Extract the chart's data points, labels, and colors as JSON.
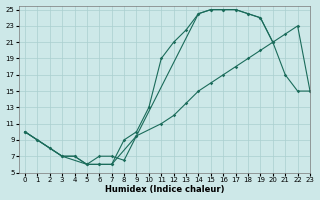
{
  "xlabel": "Humidex (Indice chaleur)",
  "xlim": [
    -0.5,
    23
  ],
  "ylim": [
    5,
    25.5
  ],
  "xticks": [
    0,
    1,
    2,
    3,
    4,
    5,
    6,
    7,
    8,
    9,
    10,
    11,
    12,
    13,
    14,
    15,
    16,
    17,
    18,
    19,
    20,
    21,
    22,
    23
  ],
  "yticks": [
    5,
    7,
    9,
    11,
    13,
    15,
    17,
    19,
    21,
    23,
    25
  ],
  "bg_color": "#cde8e8",
  "grid_color": "#aacfcf",
  "line_color": "#1a6b5a",
  "line1_x": [
    0,
    1,
    2,
    3,
    4,
    5,
    6,
    7,
    8,
    9,
    10,
    11,
    12,
    13,
    14,
    15,
    16,
    17,
    18,
    19,
    20
  ],
  "line1_y": [
    10,
    9,
    8,
    7,
    7,
    6,
    6,
    6,
    9,
    10,
    13,
    19,
    21,
    22.5,
    24.5,
    25,
    25,
    25,
    24.5,
    24,
    21
  ],
  "line2_x": [
    0,
    1,
    2,
    3,
    4,
    5,
    6,
    7,
    9,
    11,
    12,
    13,
    14,
    15,
    16,
    17,
    18,
    19,
    20,
    21,
    22,
    23
  ],
  "line2_y": [
    10,
    9,
    8,
    7,
    7,
    6,
    6,
    6,
    9.5,
    11,
    12,
    13.5,
    15,
    16,
    17,
    18,
    19,
    20,
    21,
    22,
    23,
    15
  ],
  "line3_x": [
    0,
    3,
    5,
    6,
    7,
    8,
    9,
    14,
    15,
    16,
    17,
    18,
    19,
    20,
    21,
    22,
    23
  ],
  "line3_y": [
    10,
    7,
    6,
    7,
    7,
    6.5,
    9.5,
    24.5,
    25,
    25,
    25,
    24.5,
    24,
    21,
    17,
    15,
    15
  ]
}
